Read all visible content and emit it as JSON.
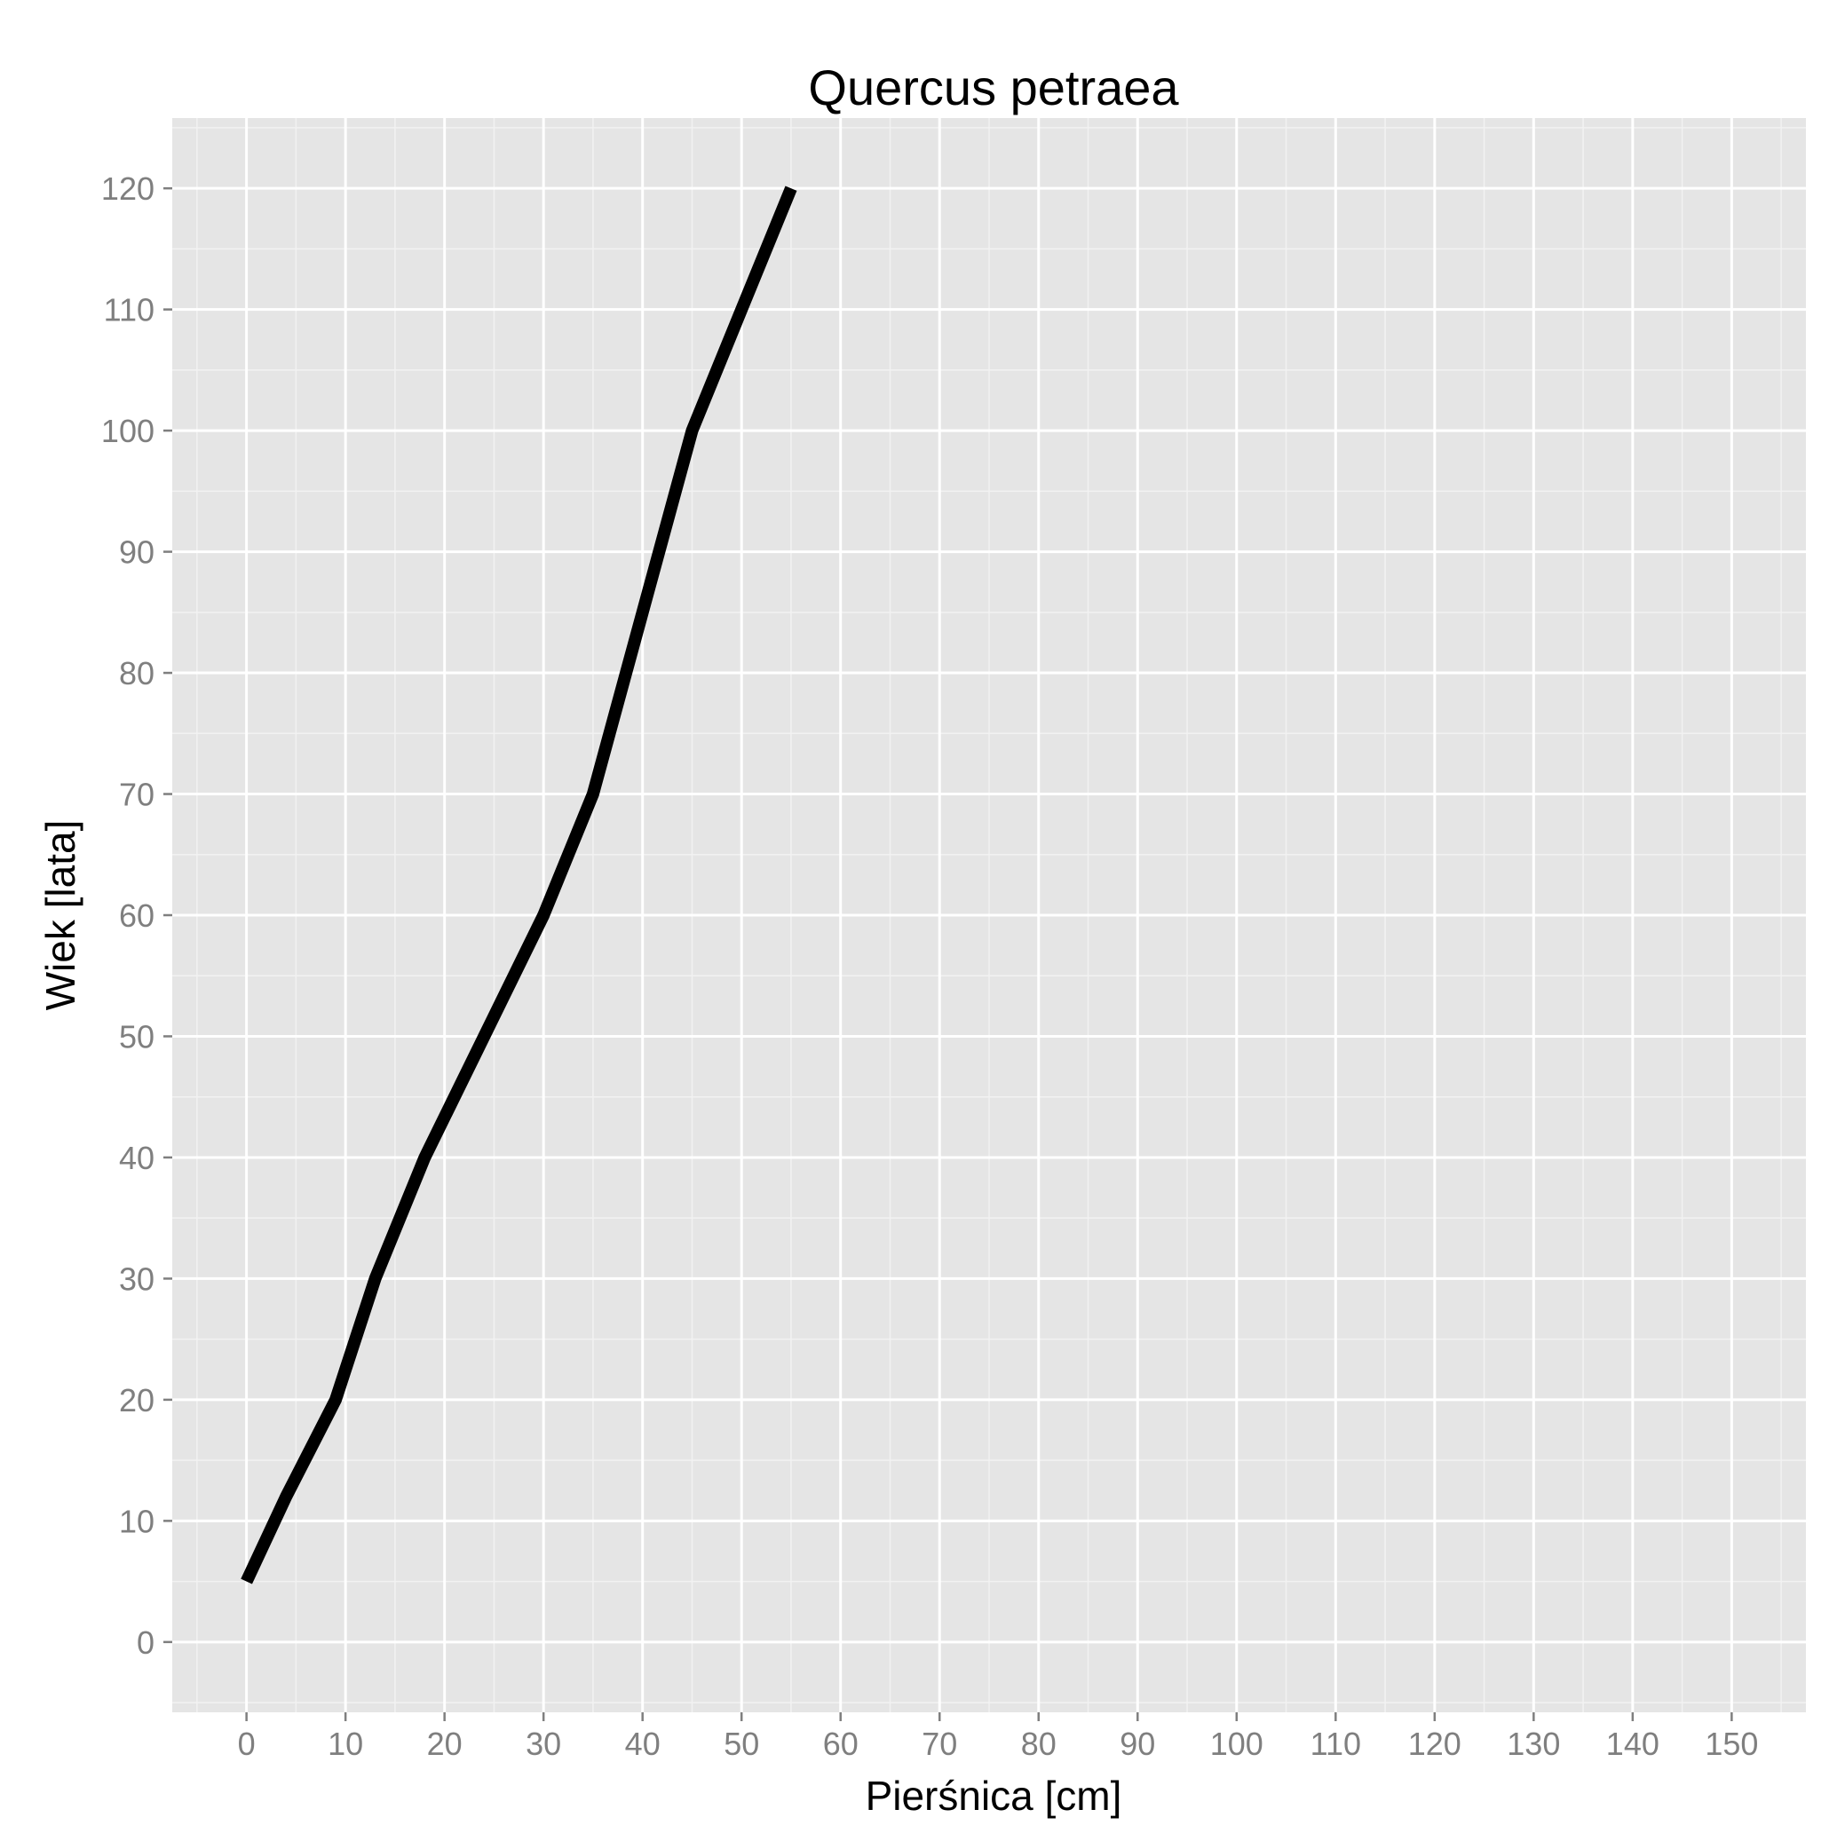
{
  "chart_data": {
    "type": "line",
    "title": "Quercus petraea",
    "xlabel": "Pierśnica [cm]",
    "ylabel": "Wiek [lata]",
    "xlim": [
      -7.5,
      157.5
    ],
    "ylim": [
      -5.8,
      125.8
    ],
    "x_ticks": [
      "0",
      "10",
      "20",
      "30",
      "40",
      "50",
      "60",
      "70",
      "80",
      "90",
      "100",
      "110",
      "120",
      "130",
      "140",
      "150"
    ],
    "y_ticks": [
      "0",
      "10",
      "20",
      "30",
      "40",
      "50",
      "60",
      "70",
      "80",
      "90",
      "100",
      "110",
      "120"
    ],
    "grid": true,
    "series": [
      {
        "x": [
          0,
          4,
          9,
          13,
          18,
          24,
          30,
          35,
          40,
          45,
          50,
          55
        ],
        "y": [
          5,
          12,
          20,
          30,
          40,
          50,
          60,
          70,
          85,
          100,
          110,
          120
        ]
      }
    ],
    "colors": {
      "panel": "#e5e5e5",
      "grid_major": "#ffffff",
      "grid_minor": "#f2f2f2",
      "line": "#000000",
      "tick_text": "#7f7f7f"
    }
  }
}
